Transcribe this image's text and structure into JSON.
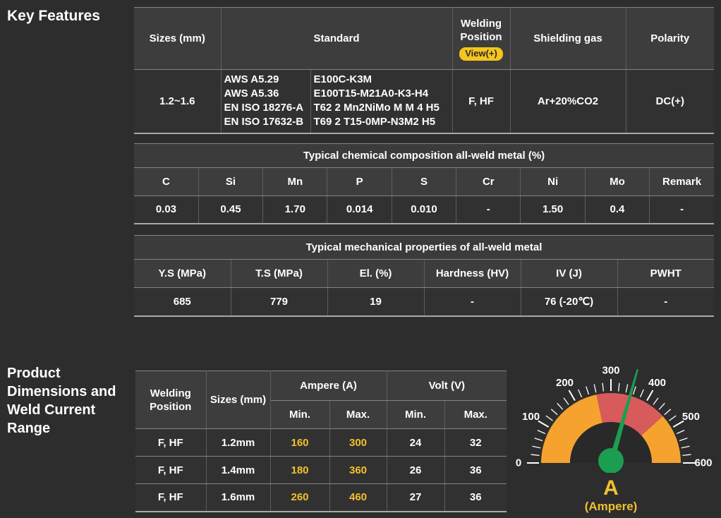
{
  "headings": {
    "key_features": "Key Features",
    "product_dimensions": "Product Dimensions and Weld Current Range"
  },
  "spec_table": {
    "headers": {
      "sizes": "Sizes (mm)",
      "standard": "Standard",
      "welding_position": "Welding Position",
      "view_badge": "View(+)",
      "shielding_gas": "Shielding gas",
      "polarity": "Polarity"
    },
    "row": {
      "sizes": "1.2~1.6",
      "standard_col1": "AWS A5.29\nAWS A5.36\nEN ISO 18276-A\nEN ISO 17632-B",
      "standard_col2": "E100C-K3M\nE100T15-M21A0-K3-H4\nT62 2 Mn2NiMo M M 4 H5\nT69 2 T15-0MP-N3M2 H5",
      "welding_position": "F, HF",
      "shielding_gas": "Ar+20%CO2",
      "polarity": "DC(+)"
    }
  },
  "chemical_table": {
    "title": "Typical chemical composition all-weld metal (%)",
    "headers": [
      "C",
      "Si",
      "Mn",
      "P",
      "S",
      "Cr",
      "Ni",
      "Mo",
      "Remark"
    ],
    "values": [
      "0.03",
      "0.45",
      "1.70",
      "0.014",
      "0.010",
      "-",
      "1.50",
      "0.4",
      "-"
    ]
  },
  "mechanical_table": {
    "title": "Typical mechanical properties of all-weld metal",
    "headers": [
      "Y.S (MPa)",
      "T.S (MPa)",
      "El. (%)",
      "Hardness (HV)",
      "IV (J)",
      "PWHT"
    ],
    "values": [
      "685",
      "779",
      "19",
      "-",
      "76 (-20℃)",
      "-"
    ]
  },
  "current_table": {
    "headers": {
      "welding_position": "Welding Position",
      "sizes": "Sizes (mm)",
      "ampere": "Ampere (A)",
      "volt": "Volt (V)",
      "min": "Min.",
      "max": "Max."
    },
    "rows": [
      {
        "position": "F, HF",
        "size": "1.2mm",
        "amp_min": "160",
        "amp_max": "300",
        "volt_min": "24",
        "volt_max": "32"
      },
      {
        "position": "F, HF",
        "size": "1.4mm",
        "amp_min": "180",
        "amp_max": "360",
        "volt_min": "26",
        "volt_max": "36"
      },
      {
        "position": "F, HF",
        "size": "1.6mm",
        "amp_min": "260",
        "amp_max": "460",
        "volt_min": "27",
        "volt_max": "36"
      }
    ]
  },
  "chart_data": {
    "type": "gauge",
    "min": 0,
    "max": 600,
    "major_tick_step": 100,
    "minor_tick_step": 20,
    "tick_labels": [
      "0",
      "100",
      "200",
      "300",
      "400",
      "500",
      "600"
    ],
    "bands": [
      {
        "from": 0,
        "to": 260,
        "color": "#F5A32E"
      },
      {
        "from": 260,
        "to": 460,
        "color": "#D85B5B"
      },
      {
        "from": 460,
        "to": 600,
        "color": "#F5A32E"
      }
    ],
    "needle_value": 353,
    "needle_color": "#1B9E50",
    "hub_color": "#1B9E50",
    "tick_color": "#FFFFFF",
    "inner_color": "#292929",
    "label": "A",
    "sublabel": "(Ampere)",
    "label_color": "#F2C12E"
  },
  "colors": {
    "background": "#2D2D2D",
    "header_bg": "#3D3D3D",
    "cell_bg": "#313131",
    "border": "#5E5E5E",
    "text": "#FFFFFF",
    "accent_yellow": "#F2C12E",
    "badge_bg": "#F5C51D",
    "gauge_orange": "#F5A32E",
    "gauge_red": "#D85B5B",
    "gauge_green": "#1B9E50"
  }
}
